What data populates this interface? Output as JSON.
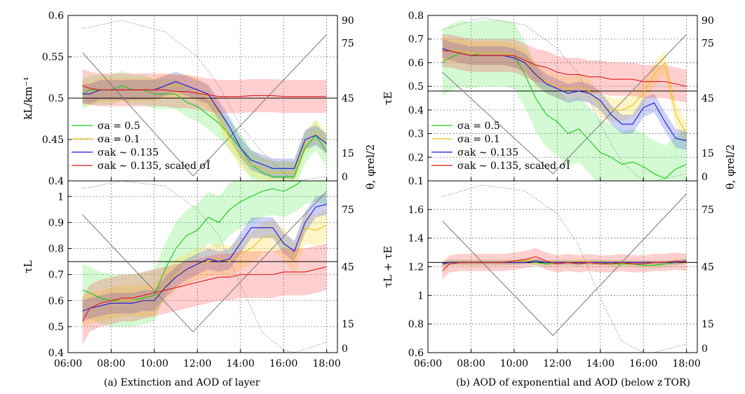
{
  "figure": {
    "captions": [
      "(a) Extinction and AOD of layer",
      "(b) AOD of exponential and AOD (below z TOR)"
    ]
  },
  "colors": {
    "green": "#17c817",
    "yellow": "#e8c21a",
    "blue": "#1818d8",
    "red": "#e01818",
    "green_band": "rgba(60,230,60,0.22)",
    "yellow_band": "rgba(255,215,50,0.28)",
    "blue_band": "rgba(50,70,220,0.25)",
    "red_band": "rgba(255,70,70,0.26)"
  },
  "legend": {
    "entries": [
      {
        "text": "σa = 0.5",
        "color": "green"
      },
      {
        "text": "σa = 0.1",
        "color": "yellow"
      },
      {
        "text": "σak ∼ 0.135",
        "color": "blue"
      },
      {
        "text": "σak ∼ 0.135, scaled σĨ",
        "color": "red"
      }
    ]
  },
  "chart_data": [
    {
      "type": "line",
      "panel": "a-top",
      "ylabel": "kL/km⁻¹",
      "y2label": "θ, φrel/2",
      "ylim": [
        0.4,
        0.6
      ],
      "yticks": [
        "0.4",
        "0.45",
        "0.5",
        "0.55",
        "0.6"
      ],
      "y2ticks": [
        "0",
        "15",
        "45",
        "75",
        "90"
      ],
      "xticks": [],
      "reference_line": 0.5,
      "x": [
        6.67,
        7,
        7.5,
        8,
        8.5,
        9,
        9.5,
        10,
        10.5,
        11,
        11.5,
        12,
        12.5,
        13,
        13.5,
        14,
        14.5,
        15,
        15.5,
        16,
        16.5,
        17,
        17.5,
        18
      ],
      "series": [
        {
          "name": "σa = 0.5",
          "color": "green",
          "values": [
            0.505,
            0.51,
            0.51,
            0.51,
            0.515,
            0.51,
            0.51,
            0.505,
            0.505,
            0.505,
            0.495,
            0.49,
            0.48,
            0.47,
            0.455,
            0.44,
            0.42,
            0.41,
            0.405,
            0.405,
            0.405,
            0.44,
            0.455,
            0.435
          ],
          "band": 0.018
        },
        {
          "name": "σa = 0.1",
          "color": "yellow",
          "values": [
            0.505,
            0.505,
            0.51,
            0.51,
            0.51,
            0.51,
            0.51,
            0.51,
            0.515,
            0.515,
            0.515,
            0.51,
            0.5,
            0.48,
            0.45,
            0.43,
            0.42,
            0.415,
            0.41,
            0.41,
            0.41,
            0.445,
            0.46,
            0.445
          ],
          "band": 0.014
        },
        {
          "name": "σak ∼ 0.135",
          "color": "blue",
          "values": [
            0.505,
            0.505,
            0.51,
            0.51,
            0.51,
            0.51,
            0.51,
            0.51,
            0.515,
            0.52,
            0.515,
            0.51,
            0.505,
            0.485,
            0.465,
            0.44,
            0.425,
            0.42,
            0.415,
            0.415,
            0.415,
            0.45,
            0.455,
            0.445
          ],
          "band": 0.012
        },
        {
          "name": "σak ∼ 0.135, scaled σĨ",
          "color": "red",
          "values": [
            0.515,
            0.512,
            0.51,
            0.51,
            0.51,
            0.51,
            0.51,
            0.51,
            0.51,
            0.508,
            0.508,
            0.506,
            0.504,
            0.502,
            0.502,
            0.502,
            0.503,
            0.503,
            0.503,
            0.502,
            0.502,
            0.502,
            0.502,
            0.502
          ],
          "band": 0.02
        }
      ],
      "angle_solid": [
        [
          6.67,
          0.555
        ],
        [
          11.8,
          0.406
        ],
        [
          18,
          0.577
        ]
      ],
      "angle_dotted": [
        [
          6.67,
          0.584
        ],
        [
          8.5,
          0.594
        ],
        [
          10.5,
          0.58
        ],
        [
          12,
          0.55
        ],
        [
          13,
          0.515
        ],
        [
          14,
          0.467
        ],
        [
          15,
          0.435
        ],
        [
          16,
          0.41
        ],
        [
          16.5,
          0.4
        ],
        [
          18,
          0.405
        ]
      ]
    },
    {
      "type": "line",
      "panel": "a-bottom",
      "ylabel": "τL",
      "y2label": "θ, φrel/2",
      "ylim": [
        0.4,
        1.06
      ],
      "yticks": [
        "0.4",
        "0.5",
        "0.6",
        "0.7",
        "0.8",
        "0.9",
        "1"
      ],
      "y2ticks": [
        "0",
        "15",
        "45",
        "75"
      ],
      "xticks": [
        "06:00",
        "08:00",
        "10:00",
        "12:00",
        "14:00",
        "16:00",
        "18:00"
      ],
      "reference_line": 0.75,
      "x": [
        6.67,
        7,
        7.5,
        8,
        8.5,
        9,
        9.5,
        10,
        10.5,
        11,
        11.5,
        12,
        12.5,
        13,
        13.5,
        14,
        14.5,
        15,
        15.5,
        16,
        16.5,
        17,
        17.5,
        18
      ],
      "series": [
        {
          "name": "σa = 0.5",
          "color": "green",
          "values": [
            0.64,
            0.63,
            0.61,
            0.6,
            0.6,
            0.6,
            0.61,
            0.62,
            0.72,
            0.8,
            0.85,
            0.87,
            0.92,
            0.9,
            0.95,
            0.98,
            1.0,
            1.02,
            1.03,
            1.02,
            1.04,
            1.07,
            1.08,
            1.07
          ],
          "band": 0.1
        },
        {
          "name": "σa = 0.1",
          "color": "yellow",
          "values": [
            0.56,
            0.57,
            0.58,
            0.59,
            0.6,
            0.6,
            0.6,
            0.6,
            0.66,
            0.7,
            0.72,
            0.74,
            0.75,
            0.76,
            0.75,
            0.78,
            0.8,
            0.84,
            0.85,
            0.82,
            0.76,
            0.88,
            0.87,
            0.89
          ],
          "band": 0.06
        },
        {
          "name": "σak ∼ 0.135",
          "color": "blue",
          "values": [
            0.56,
            0.57,
            0.58,
            0.59,
            0.59,
            0.59,
            0.6,
            0.6,
            0.65,
            0.69,
            0.72,
            0.74,
            0.76,
            0.75,
            0.76,
            0.82,
            0.88,
            0.88,
            0.88,
            0.82,
            0.79,
            0.9,
            0.96,
            0.97
          ],
          "band": 0.04
        },
        {
          "name": "σak ∼ 0.135, scaled σĨ",
          "color": "red",
          "values": [
            0.52,
            0.57,
            0.59,
            0.6,
            0.61,
            0.61,
            0.62,
            0.63,
            0.64,
            0.65,
            0.66,
            0.67,
            0.68,
            0.69,
            0.69,
            0.7,
            0.7,
            0.7,
            0.7,
            0.71,
            0.71,
            0.71,
            0.72,
            0.73
          ],
          "band": 0.09
        }
      ],
      "angle_solid": [
        [
          6.67,
          0.93
        ],
        [
          11.8,
          0.48
        ],
        [
          18,
          1.02
        ]
      ],
      "angle_dotted": [
        [
          6.67,
          1.03
        ],
        [
          8.5,
          1.06
        ],
        [
          10.5,
          1.04
        ],
        [
          12,
          0.95
        ],
        [
          13,
          0.85
        ],
        [
          14,
          0.66
        ],
        [
          15,
          0.48
        ],
        [
          16,
          0.41
        ],
        [
          16.5,
          0.4
        ],
        [
          18,
          0.44
        ]
      ]
    },
    {
      "type": "line",
      "panel": "b-top",
      "ylabel": "τE",
      "y2label": "θ, φrel/2",
      "ylim": [
        0.1,
        0.8
      ],
      "yticks": [
        "0.1",
        "0.2",
        "0.3",
        "0.4",
        "0.5",
        "0.6",
        "0.7",
        "0.8"
      ],
      "y2ticks": [
        "0",
        "15",
        "45",
        "75",
        "90"
      ],
      "xticks": [],
      "reference_line": 0.48,
      "x": [
        6.67,
        7,
        7.5,
        8,
        8.5,
        9,
        9.5,
        10,
        10.5,
        11,
        11.5,
        12,
        12.5,
        13,
        13.5,
        14,
        14.5,
        15,
        15.5,
        16,
        16.5,
        17,
        17.5,
        18
      ],
      "series": [
        {
          "name": "σa = 0.5",
          "color": "green",
          "values": [
            0.6,
            0.62,
            0.64,
            0.63,
            0.64,
            0.64,
            0.64,
            0.63,
            0.55,
            0.45,
            0.38,
            0.35,
            0.3,
            0.32,
            0.27,
            0.22,
            0.2,
            0.17,
            0.18,
            0.16,
            0.13,
            0.11,
            0.15,
            0.17
          ],
          "band": 0.14
        },
        {
          "name": "σa = 0.1",
          "color": "yellow",
          "values": [
            0.66,
            0.65,
            0.65,
            0.64,
            0.64,
            0.64,
            0.64,
            0.63,
            0.61,
            0.55,
            0.52,
            0.5,
            0.49,
            0.5,
            0.48,
            0.42,
            0.4,
            0.4,
            0.42,
            0.47,
            0.55,
            0.6,
            0.38,
            0.3
          ],
          "band": 0.05
        },
        {
          "name": "σak ∼ 0.135",
          "color": "blue",
          "values": [
            0.66,
            0.65,
            0.64,
            0.63,
            0.63,
            0.63,
            0.63,
            0.62,
            0.6,
            0.55,
            0.51,
            0.49,
            0.47,
            0.48,
            0.47,
            0.44,
            0.38,
            0.34,
            0.34,
            0.41,
            0.43,
            0.35,
            0.28,
            0.27
          ],
          "band": 0.04
        },
        {
          "name": "σak ∼ 0.135, scaled σĨ",
          "color": "red",
          "values": [
            0.65,
            0.65,
            0.64,
            0.63,
            0.63,
            0.63,
            0.63,
            0.63,
            0.61,
            0.59,
            0.58,
            0.56,
            0.55,
            0.55,
            0.54,
            0.54,
            0.53,
            0.53,
            0.53,
            0.52,
            0.52,
            0.52,
            0.51,
            0.5
          ],
          "band": 0.07
        }
      ],
      "angle_solid": [
        [
          6.67,
          0.56
        ],
        [
          11.8,
          0.13
        ],
        [
          18,
          0.72
        ]
      ],
      "angle_dotted": [
        [
          6.67,
          0.74
        ],
        [
          8.5,
          0.79
        ],
        [
          10.5,
          0.76
        ],
        [
          12,
          0.66
        ],
        [
          13,
          0.55
        ],
        [
          14,
          0.34
        ],
        [
          15,
          0.18
        ],
        [
          16,
          0.1
        ],
        [
          16.5,
          0.1
        ],
        [
          18,
          0.13
        ]
      ]
    },
    {
      "type": "line",
      "panel": "b-bottom",
      "ylabel": "τL + τE",
      "y2label": "θ, φrel/2",
      "ylim": [
        0.6,
        1.8
      ],
      "yticks": [
        "0.6",
        "0.8",
        "1",
        "1.2",
        "1.4",
        "1.6"
      ],
      "y2ticks": [
        "0",
        "15",
        "45",
        "75"
      ],
      "xticks": [
        "06:00",
        "08:00",
        "10:00",
        "12:00",
        "14:00",
        "16:00",
        "18:00"
      ],
      "reference_line": 1.23,
      "x": [
        6.67,
        7,
        7.5,
        8,
        8.5,
        9,
        9.5,
        10,
        10.5,
        11,
        11.5,
        12,
        12.5,
        13,
        13.5,
        14,
        14.5,
        15,
        15.5,
        16,
        16.5,
        17,
        17.5,
        18
      ],
      "series": [
        {
          "name": "σa = 0.5",
          "color": "green",
          "values": [
            1.22,
            1.23,
            1.23,
            1.23,
            1.23,
            1.23,
            1.23,
            1.23,
            1.24,
            1.23,
            1.22,
            1.23,
            1.23,
            1.22,
            1.23,
            1.23,
            1.22,
            1.22,
            1.22,
            1.21,
            1.21,
            1.22,
            1.23,
            1.24
          ],
          "band": 0.02
        },
        {
          "name": "σa = 0.1",
          "color": "yellow",
          "values": [
            1.22,
            1.23,
            1.23,
            1.23,
            1.23,
            1.23,
            1.23,
            1.23,
            1.24,
            1.24,
            1.23,
            1.23,
            1.23,
            1.24,
            1.23,
            1.23,
            1.23,
            1.23,
            1.23,
            1.23,
            1.23,
            1.23,
            1.23,
            1.24
          ],
          "band": 0.015
        },
        {
          "name": "σak ∼ 0.135",
          "color": "blue",
          "values": [
            1.22,
            1.23,
            1.23,
            1.23,
            1.23,
            1.23,
            1.23,
            1.23,
            1.23,
            1.24,
            1.23,
            1.23,
            1.23,
            1.23,
            1.23,
            1.23,
            1.23,
            1.23,
            1.23,
            1.23,
            1.23,
            1.23,
            1.23,
            1.24
          ],
          "band": 0.012
        },
        {
          "name": "σak ∼ 0.135, scaled σĨ",
          "color": "red",
          "values": [
            1.17,
            1.22,
            1.23,
            1.23,
            1.23,
            1.23,
            1.23,
            1.24,
            1.25,
            1.27,
            1.24,
            1.22,
            1.23,
            1.22,
            1.23,
            1.22,
            1.22,
            1.23,
            1.22,
            1.22,
            1.23,
            1.23,
            1.24,
            1.23
          ],
          "band": 0.06
        }
      ],
      "angle_solid": [
        [
          6.67,
          1.52
        ],
        [
          11.8,
          0.72
        ],
        [
          18,
          1.71
        ]
      ],
      "angle_dotted": [
        [
          6.67,
          1.69
        ],
        [
          8.5,
          1.77
        ],
        [
          10.5,
          1.73
        ],
        [
          12,
          1.57
        ],
        [
          13,
          1.35
        ],
        [
          14,
          0.98
        ],
        [
          15,
          0.68
        ],
        [
          16,
          0.6
        ],
        [
          16.5,
          0.6
        ],
        [
          18,
          0.66
        ]
      ]
    }
  ]
}
